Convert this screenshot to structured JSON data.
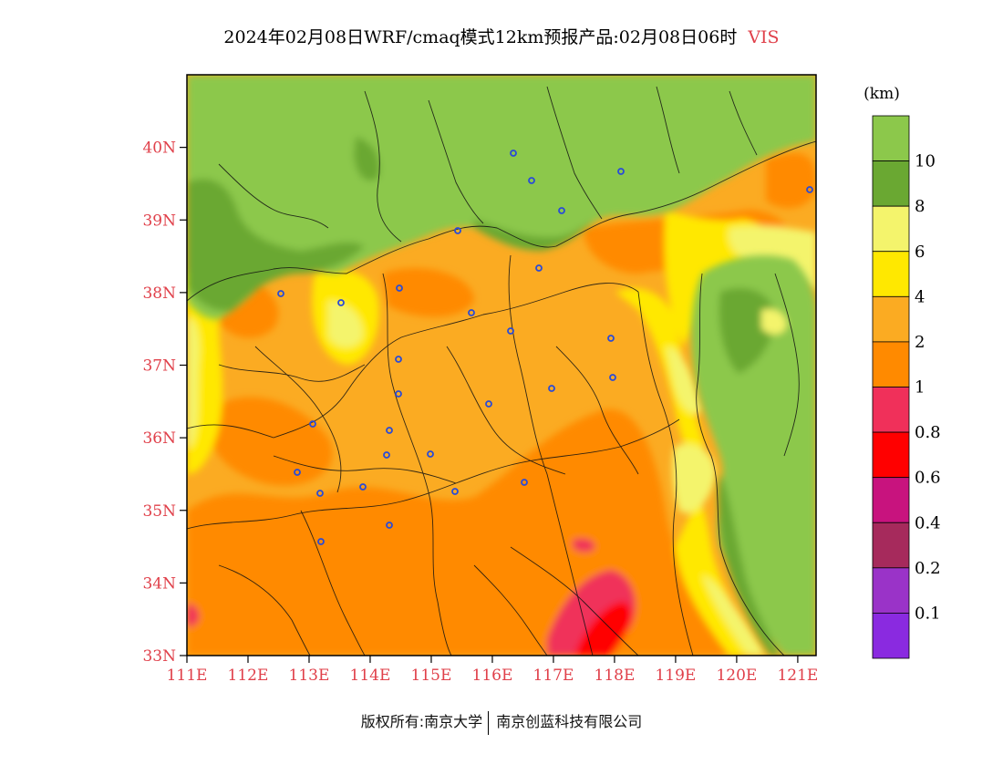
{
  "title": {
    "main": "2024年02月08日WRF/cmaq模式12km预报产品:02月08日06时",
    "variable": "VIS"
  },
  "map": {
    "lat_labels": [
      "33N",
      "34N",
      "35N",
      "36N",
      "37N",
      "38N",
      "39N",
      "40N"
    ],
    "lon_labels": [
      "111E",
      "112E",
      "113E",
      "114E",
      "115E",
      "116E",
      "117E",
      "118E",
      "119E",
      "120E",
      "121E"
    ],
    "label_color": "#e0404a",
    "city_marker_color": "#2a4bd7"
  },
  "legend": {
    "unit": "(km)",
    "levels": [
      {
        "label": "",
        "color": "#8cc84b"
      },
      {
        "label": "10",
        "color": "#6aa832"
      },
      {
        "label": "8",
        "color": "#f4f46c"
      },
      {
        "label": "6",
        "color": "#ffe800"
      },
      {
        "label": "4",
        "color": "#fbab22"
      },
      {
        "label": "2",
        "color": "#ff8a00"
      },
      {
        "label": "1",
        "color": "#f0305a"
      },
      {
        "label": "0.8",
        "color": "#ff0000"
      },
      {
        "label": "0.6",
        "color": "#c8137e"
      },
      {
        "label": "0.4",
        "color": "#a62a5c"
      },
      {
        "label": "0.2",
        "color": "#9a33c8"
      },
      {
        "label": "0.1",
        "color": "#8a2ae0"
      }
    ]
  },
  "footer": {
    "copyright": "版权所有:南京大学",
    "company": "南京创蓝科技有限公司"
  }
}
